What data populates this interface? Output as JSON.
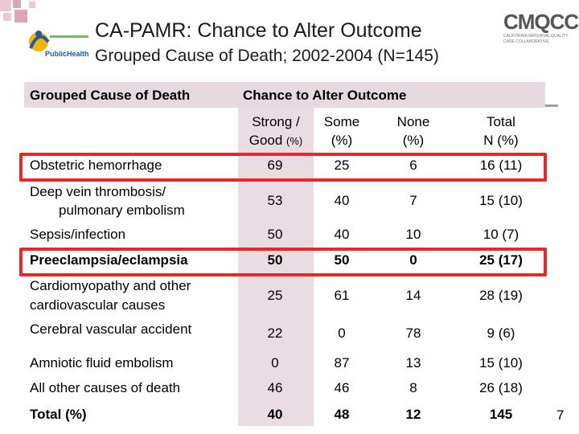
{
  "title": "CA-PAMR: Chance to Alter Outcome",
  "subtitle": "Grouped Cause of Death; 2002-2004 (N=145)",
  "logos": {
    "left": {
      "name": "California Department of Public Health",
      "text": "PublicHealth"
    },
    "right": {
      "name": "CMQCC",
      "text": "CMQCC",
      "tagline": "CALIFORNIA MATERNAL QUALITY CARE COLLABORATIVE"
    }
  },
  "table": {
    "col_header_cause": "Grouped Cause of Death",
    "col_header_chance": "Chance to Alter Outcome",
    "subheaders": {
      "strong_line1": "Strong /",
      "strong_line2": "Good",
      "strong_pct": "(%)",
      "some_line1": "Some",
      "some_line2": "(%)",
      "none_line1": "None",
      "none_line2": "(%)",
      "total_line1": "Total",
      "total_line2": "N (%)"
    },
    "rows": [
      {
        "cause": "Obstetric hemorrhage",
        "strong": "69",
        "some": "25",
        "none": "6",
        "total": "16 (11)"
      },
      {
        "cause_line1": "Deep vein thrombosis/",
        "cause_line2": "pulmonary embolism",
        "strong": "53",
        "some": "40",
        "none": "7",
        "total": "15 (10)"
      },
      {
        "cause": "Sepsis/infection",
        "strong": "50",
        "some": "40",
        "none": "10",
        "total": "10 (7)"
      },
      {
        "cause": "Preeclampsia/eclampsia",
        "strong": "50",
        "some": "50",
        "none": "0",
        "total": "25 (17)"
      },
      {
        "cause_line1": "Cardiomyopathy and other",
        "cause_line2": "cardiovascular causes",
        "strong": "25",
        "some": "61",
        "none": "14",
        "total": "28 (19)"
      },
      {
        "cause": "Cerebral vascular accident",
        "strong": "22",
        "some": "0",
        "none": "78",
        "total": "9 (6)"
      },
      {
        "cause": "Amniotic fluid embolism",
        "strong": "0",
        "some": "87",
        "none": "13",
        "total": "15 (10)"
      },
      {
        "cause": "All other causes of death",
        "strong": "46",
        "some": "46",
        "none": "8",
        "total": "26 (18)"
      },
      {
        "cause": "Total (%)",
        "strong": "40",
        "some": "48",
        "none": "12",
        "total": "145"
      }
    ],
    "highlight_color": "#e8272b"
  },
  "page_number": "7"
}
